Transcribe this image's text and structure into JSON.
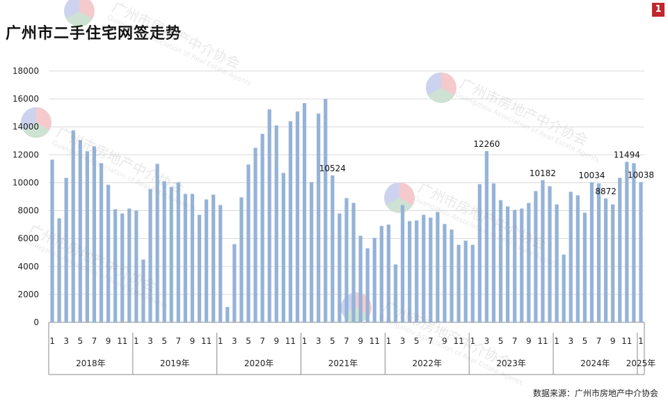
{
  "header": {
    "title": "广州市二手住宅网签走势",
    "badge": "1"
  },
  "footer": {
    "source": "数据来源：广州市房地产中介协会"
  },
  "watermark": {
    "text": "广州市房地产中介协会",
    "sub": "Guangzhou Association of Real Estate Agents"
  },
  "colors": {
    "bar": "#95b3d7",
    "grid": "#d9d9d9",
    "axis": "#888888"
  },
  "chart_data": {
    "type": "bar",
    "ylim": [
      0,
      18000
    ],
    "yticks": [
      0,
      2000,
      4000,
      6000,
      8000,
      10000,
      12000,
      14000,
      16000,
      18000
    ],
    "xlabel": "",
    "ylabel": "",
    "grid": true,
    "month_tick_labels": [
      "1",
      "3",
      "5",
      "7",
      "9",
      "11"
    ],
    "years": [
      {
        "label": "2018年",
        "values": [
          11650,
          7450,
          10350,
          13750,
          13050,
          12250,
          12600,
          11400,
          9850,
          8100,
          7800,
          8150
        ]
      },
      {
        "label": "2019年",
        "values": [
          8000,
          4500,
          9550,
          11350,
          10100,
          9700,
          10000,
          9200,
          9200,
          7700,
          8800,
          9150
        ]
      },
      {
        "label": "2020年",
        "values": [
          8400,
          1100,
          5600,
          8950,
          11300,
          12500,
          13500,
          15250,
          14100,
          10700,
          14400,
          15100
        ]
      },
      {
        "label": "2021年",
        "values": [
          15700,
          10050,
          14950,
          16000,
          10524,
          7800,
          8900,
          8550,
          6200,
          5300,
          6050,
          6900
        ]
      },
      {
        "label": "2022年",
        "values": [
          7000,
          4150,
          8400,
          7250,
          7300,
          7700,
          7500,
          7900,
          7050,
          6650,
          5550,
          5850
        ]
      },
      {
        "label": "2023年",
        "values": [
          5550,
          9900,
          12260,
          9950,
          8750,
          8300,
          8050,
          8150,
          8550,
          9400,
          10182,
          9750
        ]
      },
      {
        "label": "2024年",
        "values": [
          8450,
          4850,
          9350,
          9100,
          7850,
          10034,
          9950,
          8872,
          8450,
          10350,
          11494,
          11400
        ]
      },
      {
        "label": "2025年",
        "values": [
          10038
        ]
      }
    ],
    "data_labels": [
      {
        "year": 3,
        "month": 5,
        "text": "10524"
      },
      {
        "year": 5,
        "month": 3,
        "text": "12260"
      },
      {
        "year": 5,
        "month": 11,
        "text": "10182"
      },
      {
        "year": 6,
        "month": 6,
        "text": "10034"
      },
      {
        "year": 6,
        "month": 8,
        "text": "8872"
      },
      {
        "year": 6,
        "month": 11,
        "text": "11494"
      },
      {
        "year": 7,
        "month": 1,
        "text": "10038"
      }
    ]
  }
}
